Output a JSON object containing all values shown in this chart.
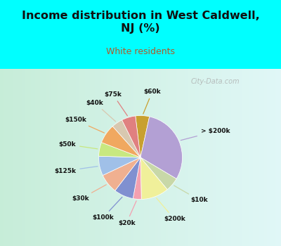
{
  "title": "Income distribution in West Caldwell,\nNJ (%)",
  "subtitle": "White residents",
  "title_color": "#111111",
  "subtitle_color": "#b05a2a",
  "bg_color": "#00ffff",
  "chart_bg_left": "#c8edd8",
  "chart_bg_right": "#e8f8f8",
  "labels": [
    "$60k",
    "> $200k",
    "$10k",
    "$200k",
    "$20k",
    "$100k",
    "$30k",
    "$125k",
    "$50k",
    "$150k",
    "$40k",
    "$75k"
  ],
  "values": [
    5,
    28,
    5,
    10,
    3,
    7,
    7,
    7,
    5,
    7,
    4,
    5
  ],
  "colors": [
    "#c8a030",
    "#b3a0d4",
    "#c8d8a8",
    "#f0f09a",
    "#f4a0b0",
    "#8090d0",
    "#f0b090",
    "#a0c0e8",
    "#c8e880",
    "#f0a860",
    "#d8c8b0",
    "#e08080"
  ],
  "startangle": 97,
  "watermark": "City-Data.com"
}
